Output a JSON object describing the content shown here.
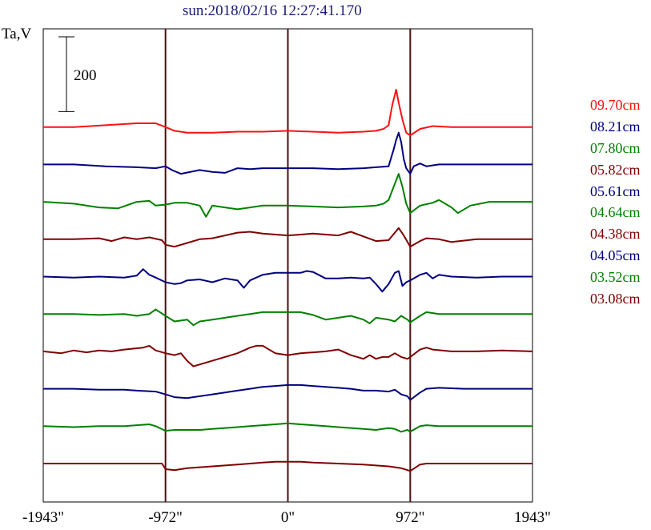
{
  "chart_data": {
    "type": "line",
    "title": "sun:2018/02/16 12:27:41.170",
    "ylabel": "Ta,V",
    "scale_bar_label": "200",
    "scale_bar_value": 200,
    "x_ticks": [
      "-1943\"",
      "-972\"",
      "0\"",
      "972\"",
      "1943\""
    ],
    "x_tick_values": [
      -1943,
      -972,
      0,
      972,
      1943
    ],
    "xlim": [
      -1943,
      1943
    ],
    "vertical_lines": [
      -972,
      0,
      972
    ],
    "stack_offset": 200,
    "colors": {
      "red": "#ff1010",
      "blue": "#000080",
      "green": "#008000",
      "darkred": "#800000",
      "axes": "#000000",
      "marker": "#4a1010",
      "title": "#1a1a7a"
    },
    "series": [
      {
        "name": "09.70cm",
        "color": "#ff1010",
        "offset": 1800,
        "x": [
          -1943,
          -1700,
          -1450,
          -1200,
          -1050,
          -972,
          -900,
          -800,
          -600,
          -400,
          -200,
          0,
          200,
          400,
          600,
          700,
          760,
          800,
          830,
          860,
          880,
          910,
          940,
          972,
          1050,
          1150,
          1300,
          1500,
          1700,
          1943
        ],
        "y": [
          0,
          0,
          10,
          20,
          20,
          0,
          -20,
          -30,
          -30,
          -25,
          -25,
          -20,
          -25,
          -30,
          -25,
          -20,
          -10,
          10,
          120,
          200,
          130,
          40,
          -30,
          -45,
          -10,
          5,
          0,
          0,
          0,
          0
        ]
      },
      {
        "name": "08.21cm",
        "color": "#000080",
        "offset": 1600,
        "x": [
          -1943,
          -1700,
          -1450,
          -1200,
          -1050,
          -972,
          -920,
          -850,
          -700,
          -600,
          -500,
          -400,
          -300,
          -200,
          0,
          200,
          400,
          600,
          700,
          800,
          840,
          860,
          880,
          900,
          920,
          940,
          972,
          1000,
          1050,
          1100,
          1200,
          1400,
          1700,
          1943
        ],
        "y": [
          0,
          0,
          -10,
          -15,
          -20,
          -10,
          -30,
          -50,
          -30,
          -40,
          -45,
          -20,
          -25,
          -20,
          -20,
          -20,
          -25,
          -20,
          -15,
          -10,
          80,
          130,
          170,
          120,
          30,
          -20,
          -50,
          -10,
          5,
          -10,
          0,
          0,
          0,
          0
        ]
      },
      {
        "name": "07.80cm",
        "color": "#008000",
        "offset": 1400,
        "x": [
          -1943,
          -1700,
          -1500,
          -1350,
          -1200,
          -1100,
          -1050,
          -972,
          -900,
          -850,
          -800,
          -700,
          -650,
          -600,
          -500,
          -400,
          -300,
          -200,
          0,
          200,
          400,
          600,
          700,
          760,
          800,
          840,
          880,
          910,
          940,
          972,
          1050,
          1150,
          1200,
          1300,
          1350,
          1450,
          1600,
          1800,
          1943
        ],
        "y": [
          0,
          -10,
          -30,
          -35,
          0,
          5,
          -20,
          -15,
          -5,
          -5,
          -5,
          -20,
          -80,
          -20,
          -30,
          -40,
          -30,
          -20,
          -20,
          -25,
          -30,
          -25,
          -20,
          -10,
          10,
          80,
          150,
          80,
          -10,
          -60,
          -20,
          -5,
          10,
          -30,
          -60,
          -20,
          0,
          0,
          0
        ]
      },
      {
        "name": "05.82cm",
        "color": "#800000",
        "offset": 1200,
        "x": [
          -1943,
          -1700,
          -1500,
          -1400,
          -1300,
          -1200,
          -1100,
          -1000,
          -972,
          -900,
          -800,
          -700,
          -600,
          -500,
          -400,
          -300,
          -200,
          0,
          200,
          400,
          500,
          600,
          700,
          800,
          880,
          920,
          972,
          1050,
          1100,
          1200,
          1300,
          1500,
          1800,
          1943
        ],
        "y": [
          0,
          0,
          5,
          -10,
          10,
          0,
          10,
          -5,
          -30,
          -40,
          -20,
          0,
          5,
          20,
          35,
          40,
          30,
          20,
          30,
          20,
          40,
          15,
          -10,
          -5,
          60,
          20,
          -40,
          -10,
          5,
          0,
          -15,
          0,
          0,
          0
        ]
      },
      {
        "name": "05.61cm",
        "color": "#000080",
        "offset": 1000,
        "x": [
          -1943,
          -1700,
          -1500,
          -1300,
          -1200,
          -1150,
          -1100,
          -1050,
          -972,
          -900,
          -850,
          -800,
          -700,
          -600,
          -500,
          -400,
          -350,
          -300,
          -200,
          -100,
          0,
          100,
          150,
          200,
          300,
          400,
          500,
          600,
          650,
          700,
          750,
          800,
          850,
          880,
          910,
          940,
          972,
          1050,
          1100,
          1150,
          1200,
          1300,
          1500,
          1700,
          1943
        ],
        "y": [
          0,
          -5,
          0,
          -5,
          5,
          40,
          10,
          -5,
          -30,
          -40,
          -35,
          -20,
          -15,
          -30,
          -10,
          -20,
          -60,
          -20,
          10,
          20,
          20,
          20,
          30,
          25,
          -10,
          -10,
          -5,
          -10,
          -5,
          -40,
          -80,
          -40,
          20,
          30,
          -50,
          -30,
          -20,
          10,
          20,
          -10,
          10,
          0,
          -5,
          0,
          0
        ]
      },
      {
        "name": "04.64cm",
        "color": "#008000",
        "offset": 800,
        "x": [
          -1943,
          -1700,
          -1500,
          -1300,
          -1200,
          -1100,
          -1050,
          -972,
          -900,
          -800,
          -750,
          -700,
          -600,
          -500,
          -400,
          -300,
          -200,
          -100,
          0,
          100,
          200,
          300,
          400,
          500,
          600,
          650,
          700,
          800,
          850,
          900,
          950,
          972,
          1050,
          1100,
          1200,
          1400,
          1700,
          1943
        ],
        "y": [
          0,
          0,
          -5,
          0,
          -10,
          0,
          25,
          -10,
          -40,
          -30,
          -60,
          -40,
          -30,
          -20,
          -10,
          0,
          10,
          10,
          10,
          10,
          -5,
          -30,
          -20,
          -10,
          -30,
          -50,
          -20,
          -30,
          -40,
          -10,
          -30,
          -45,
          -10,
          10,
          0,
          0,
          0,
          0
        ]
      },
      {
        "name": "04.38cm",
        "color": "#800000",
        "offset": 600,
        "x": [
          -1943,
          -1800,
          -1700,
          -1600,
          -1500,
          -1400,
          -1300,
          -1150,
          -1100,
          -1050,
          -972,
          -900,
          -850,
          -800,
          -750,
          -650,
          -600,
          -500,
          -400,
          -300,
          -250,
          -200,
          -100,
          0,
          100,
          200,
          300,
          400,
          500,
          600,
          650,
          700,
          750,
          800,
          850,
          900,
          950,
          972,
          1050,
          1100,
          1150,
          1300,
          1500,
          1700,
          1943
        ],
        "y": [
          0,
          -10,
          5,
          -5,
          5,
          0,
          10,
          20,
          30,
          5,
          -10,
          -20,
          -10,
          -50,
          -80,
          -60,
          -50,
          -30,
          -10,
          20,
          30,
          30,
          -10,
          -20,
          -10,
          -5,
          0,
          10,
          -20,
          -40,
          -20,
          -40,
          -30,
          -30,
          -10,
          -30,
          -40,
          -30,
          10,
          20,
          10,
          0,
          0,
          5,
          0
        ]
      },
      {
        "name": "04.05cm",
        "color": "#000080",
        "offset": 400,
        "x": [
          -1943,
          -1700,
          -1500,
          -1300,
          -1200,
          -1050,
          -972,
          -900,
          -800,
          -700,
          -600,
          -500,
          -400,
          -300,
          -200,
          -100,
          0,
          100,
          200,
          300,
          400,
          500,
          600,
          700,
          800,
          850,
          900,
          950,
          972,
          1050,
          1100,
          1200,
          1400,
          1600,
          1800,
          1943
        ],
        "y": [
          0,
          0,
          -5,
          -5,
          -10,
          -15,
          -30,
          -45,
          -50,
          -40,
          -30,
          -20,
          -10,
          0,
          10,
          15,
          20,
          20,
          15,
          10,
          5,
          0,
          -10,
          -10,
          -15,
          -5,
          -30,
          -40,
          -60,
          -20,
          0,
          5,
          0,
          0,
          0,
          0
        ]
      },
      {
        "name": "03.52cm",
        "color": "#008000",
        "offset": 200,
        "x": [
          -1943,
          -1700,
          -1500,
          -1300,
          -1200,
          -1100,
          -1050,
          -972,
          -900,
          -800,
          -700,
          -600,
          -500,
          -400,
          -300,
          -200,
          -100,
          0,
          100,
          200,
          300,
          400,
          500,
          600,
          700,
          800,
          850,
          900,
          950,
          972,
          1050,
          1100,
          1200,
          1400,
          1700,
          1943
        ],
        "y": [
          0,
          -5,
          0,
          0,
          5,
          10,
          0,
          -25,
          -20,
          -20,
          -20,
          -15,
          -10,
          -5,
          0,
          5,
          10,
          15,
          10,
          5,
          0,
          -5,
          -10,
          -15,
          -20,
          -10,
          -15,
          -30,
          -20,
          -30,
          0,
          5,
          0,
          0,
          0,
          0
        ]
      },
      {
        "name": "03.08cm",
        "color": "#800000",
        "offset": 0,
        "x": [
          -1943,
          -1700,
          -1500,
          -1300,
          -1100,
          -1000,
          -972,
          -900,
          -800,
          -600,
          -400,
          -200,
          -100,
          0,
          100,
          200,
          400,
          600,
          800,
          900,
          950,
          972,
          1050,
          1100,
          1300,
          1500,
          1700,
          1943
        ],
        "y": [
          0,
          0,
          0,
          0,
          0,
          0,
          -30,
          -35,
          -25,
          -15,
          -5,
          5,
          10,
          10,
          10,
          5,
          0,
          -5,
          -15,
          -25,
          -35,
          -40,
          -5,
          0,
          0,
          0,
          0,
          0
        ]
      }
    ]
  }
}
